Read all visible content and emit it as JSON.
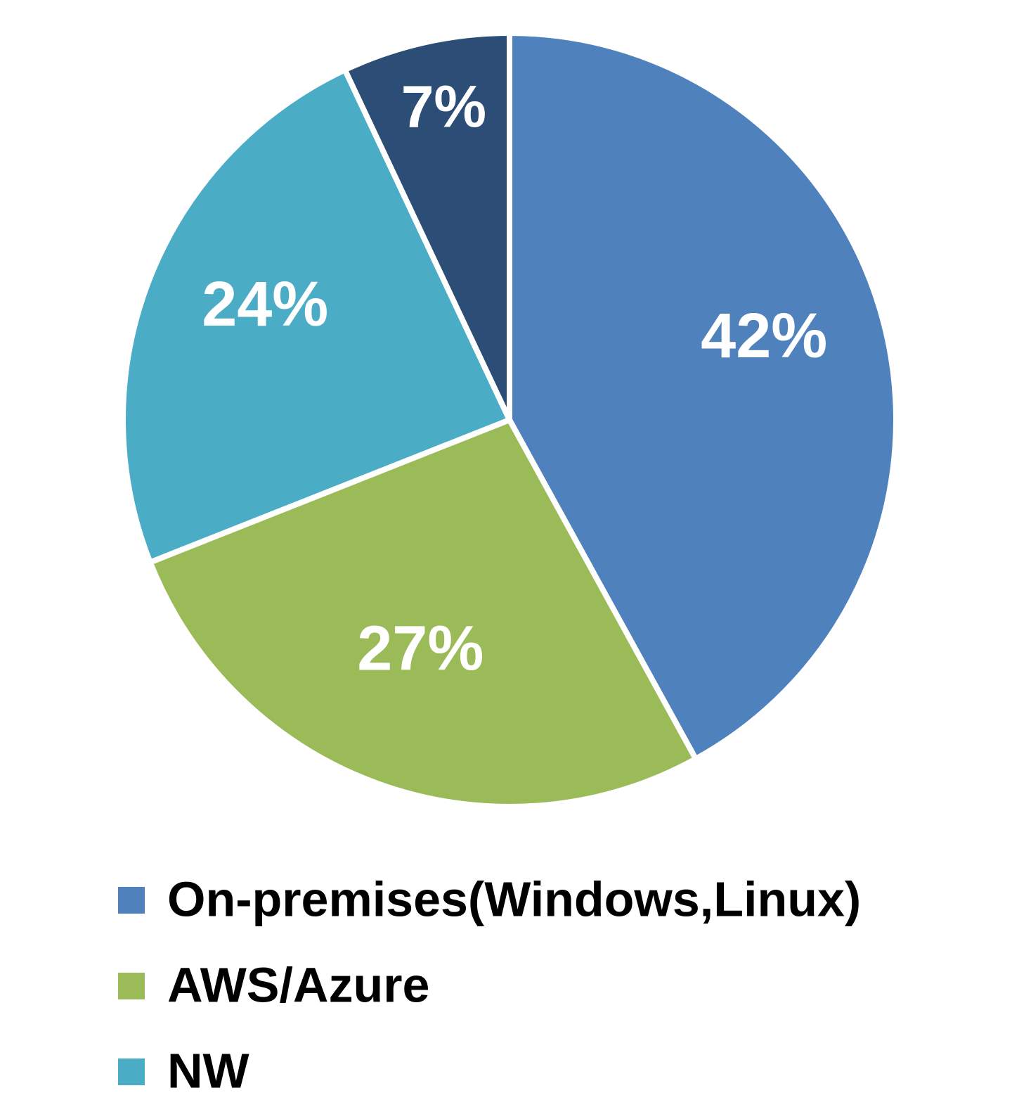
{
  "chart_data": {
    "type": "pie",
    "categories": [
      "On-premises(Windows,Linux)",
      "AWS/Azure",
      "NW",
      null
    ],
    "values": [
      42,
      27,
      24,
      7
    ],
    "value_labels": [
      "42%",
      "27%",
      "24%",
      "7%"
    ],
    "colors": [
      "#4f81bd",
      "#9bbb59",
      "#4bacc6",
      "#2c4d75"
    ],
    "legend": "bottom"
  }
}
